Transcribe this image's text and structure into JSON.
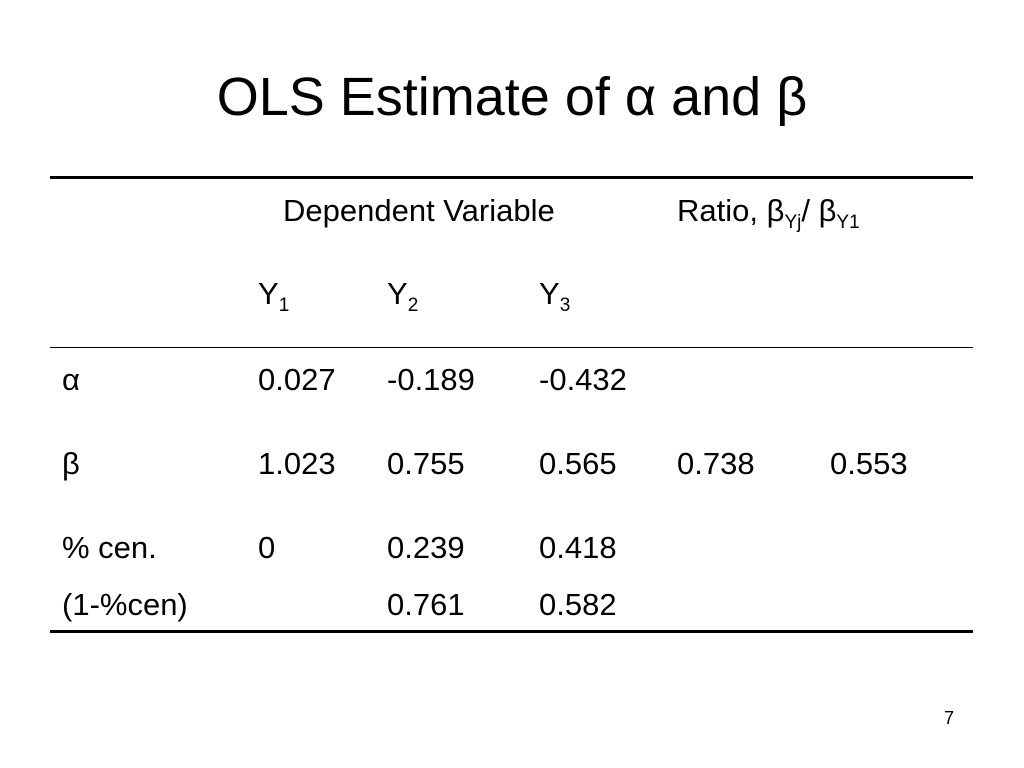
{
  "slide": {
    "title": "OLS Estimate of α and β",
    "page_number": "7"
  },
  "table": {
    "header": {
      "dependent_variable": "Dependent Variable",
      "ratio": {
        "prefix": "Ratio, β",
        "sub1": "Yj",
        "middle": "/ β",
        "sub2": "Y1"
      },
      "columns": [
        {
          "base": "Y",
          "sub": "1"
        },
        {
          "base": "Y",
          "sub": "2"
        },
        {
          "base": "Y",
          "sub": "3"
        }
      ]
    },
    "rows": [
      {
        "label": "α",
        "values": [
          "0.027",
          "-0.189",
          "-0.432",
          "",
          ""
        ]
      },
      {
        "label": "β",
        "values": [
          "1.023",
          "0.755",
          "0.565",
          "0.738",
          "0.553"
        ]
      },
      {
        "label": "% cen.",
        "values": [
          "0",
          "0.239",
          "0.418",
          "",
          ""
        ]
      },
      {
        "label": "(1-%cen)",
        "values": [
          "",
          "0.761",
          "0.582",
          "",
          ""
        ]
      }
    ]
  }
}
